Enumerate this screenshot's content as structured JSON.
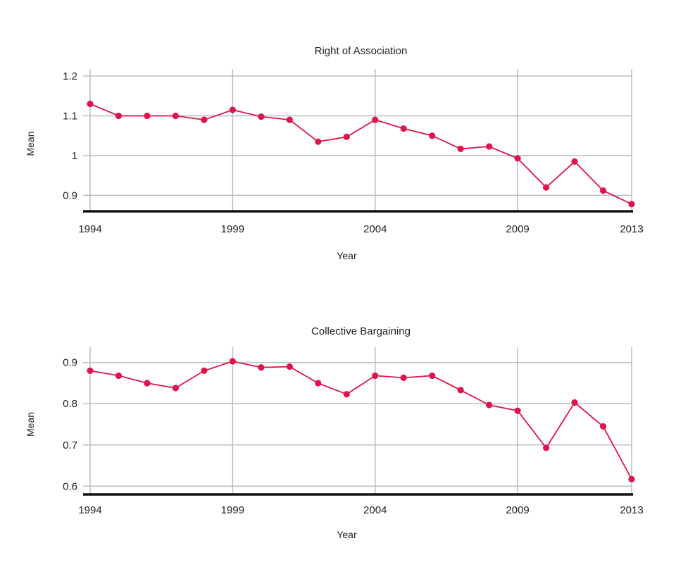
{
  "colors": {
    "series": "#e0144c",
    "grid": "#bdbdbd",
    "axis": "#111111"
  },
  "chart_data": [
    {
      "type": "line",
      "title": "Right of Association",
      "xlabel": "Year",
      "ylabel": "Mean",
      "xlim": [
        1994,
        2013
      ],
      "ylim": [
        0.86,
        1.2
      ],
      "x_ticks": [
        1994,
        1999,
        2004,
        2009,
        2013
      ],
      "y_ticks": [
        0.9,
        1,
        1.1,
        1.2
      ],
      "y_tick_labels": [
        "0.9",
        "1",
        "1.1",
        "1.2"
      ],
      "grid": true,
      "series": [
        {
          "x": [
            1994,
            1995,
            1996,
            1997,
            1998,
            1999,
            2000,
            2001,
            2002,
            2003,
            2004,
            2005,
            2006,
            2007,
            2008,
            2009,
            2010,
            2011,
            2012,
            2013
          ],
          "values": [
            1.13,
            1.1,
            1.1,
            1.1,
            1.09,
            1.115,
            1.098,
            1.09,
            1.035,
            1.047,
            1.09,
            1.068,
            1.05,
            1.017,
            1.023,
            0.993,
            0.92,
            0.985,
            0.912,
            0.878
          ]
        }
      ]
    },
    {
      "type": "line",
      "title": "Collective Bargaining",
      "xlabel": "Year",
      "ylabel": "Mean",
      "xlim": [
        1994,
        2013
      ],
      "ylim": [
        0.58,
        0.92
      ],
      "x_ticks": [
        1994,
        1999,
        2004,
        2009,
        2013
      ],
      "y_ticks": [
        0.6,
        0.7,
        0.8,
        0.9
      ],
      "y_tick_labels": [
        "0.6",
        "0.7",
        "0.8",
        "0.9"
      ],
      "grid": true,
      "series": [
        {
          "x": [
            1994,
            1995,
            1996,
            1997,
            1998,
            1999,
            2000,
            2001,
            2002,
            2003,
            2004,
            2005,
            2006,
            2007,
            2008,
            2009,
            2010,
            2011,
            2012,
            2013
          ],
          "values": [
            0.88,
            0.868,
            0.85,
            0.838,
            0.88,
            0.903,
            0.888,
            0.89,
            0.85,
            0.823,
            0.868,
            0.863,
            0.868,
            0.833,
            0.797,
            0.783,
            0.693,
            0.803,
            0.745,
            0.617
          ]
        }
      ]
    }
  ]
}
